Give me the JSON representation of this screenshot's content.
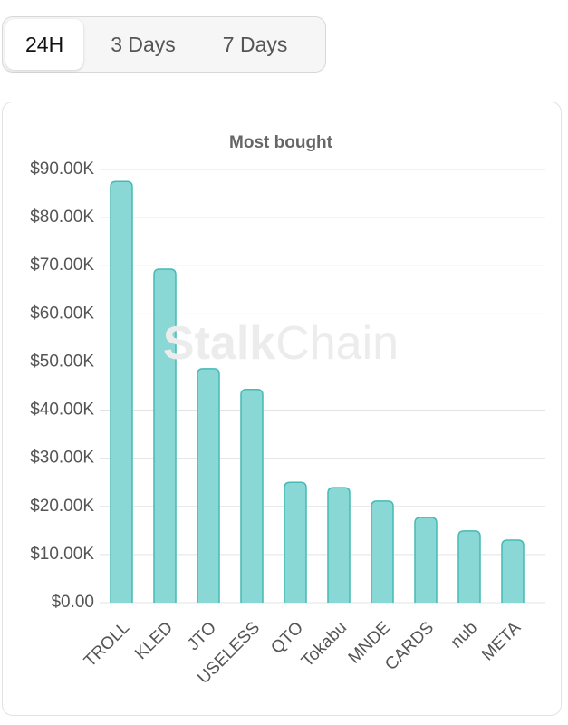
{
  "tabs": {
    "items": [
      "24H",
      "3 Days",
      "7 Days"
    ],
    "active": 0
  },
  "watermark": {
    "bold": "Stalk",
    "light": "Chain"
  },
  "chart_data": {
    "type": "bar",
    "title": "Most bought",
    "categories": [
      "TROLL",
      "KLED",
      "JTO",
      "USELESS",
      "QTO",
      "Tokabu",
      "MNDE",
      "CARDS",
      "nub",
      "META"
    ],
    "values": [
      87500,
      69300,
      48600,
      44300,
      25000,
      23900,
      21100,
      17700,
      14900,
      13000
    ],
    "color": "#8ad8d6",
    "edge_color": "#45bab5",
    "ylim": [
      0,
      90000
    ],
    "yticks": [
      {
        "value": 0,
        "label": "$0.00"
      },
      {
        "value": 10000,
        "label": "$10.00K"
      },
      {
        "value": 20000,
        "label": "$20.00K"
      },
      {
        "value": 30000,
        "label": "$30.00K"
      },
      {
        "value": 40000,
        "label": "$40.00K"
      },
      {
        "value": 50000,
        "label": "$50.00K"
      },
      {
        "value": 60000,
        "label": "$60.00K"
      },
      {
        "value": 70000,
        "label": "$70.00K"
      },
      {
        "value": 80000,
        "label": "$80.00K"
      },
      {
        "value": 90000,
        "label": "$90.00K"
      }
    ],
    "grid": true
  }
}
